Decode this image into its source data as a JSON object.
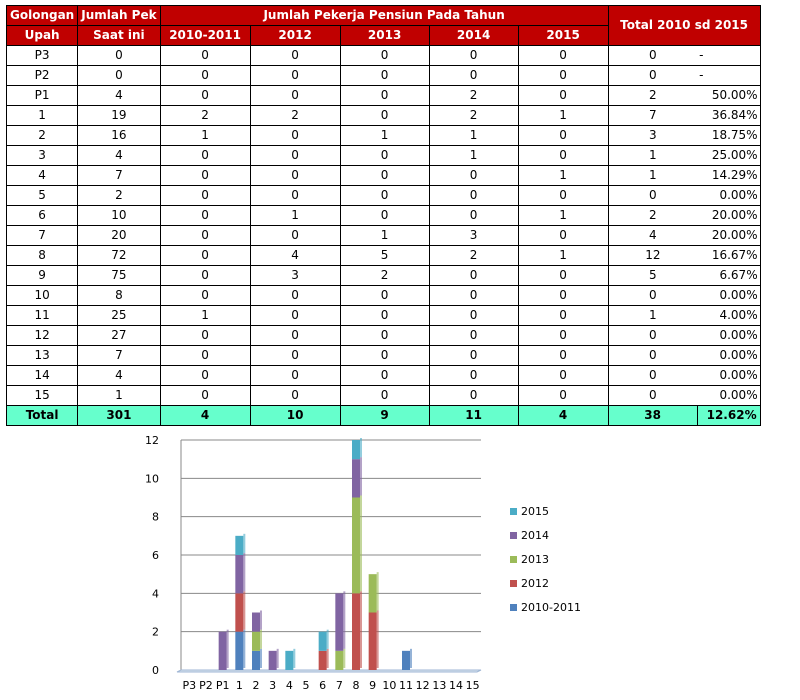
{
  "table": {
    "headers": {
      "gol_line1": "Golongan",
      "gol_line2": "Upah",
      "jumlah_line1": "Jumlah Pek",
      "jumlah_line2": "Saat ini",
      "pensiun_title": "Jumlah Pekerja Pensiun Pada Tahun",
      "years": [
        "2010-2011",
        "2012",
        "2013",
        "2014",
        "2015"
      ],
      "total_title": "Total 2010 sd 2015"
    },
    "rows": [
      {
        "gol": "P3",
        "jumlah": "0",
        "v": [
          "0",
          "0",
          "0",
          "0",
          "0"
        ],
        "total": "0",
        "pct": "-"
      },
      {
        "gol": "P2",
        "jumlah": "0",
        "v": [
          "0",
          "0",
          "0",
          "0",
          "0"
        ],
        "total": "0",
        "pct": "-"
      },
      {
        "gol": "P1",
        "jumlah": "4",
        "v": [
          "0",
          "0",
          "0",
          "2",
          "0"
        ],
        "total": "2",
        "pct": "50.00%"
      },
      {
        "gol": "1",
        "jumlah": "19",
        "v": [
          "2",
          "2",
          "0",
          "2",
          "1"
        ],
        "total": "7",
        "pct": "36.84%"
      },
      {
        "gol": "2",
        "jumlah": "16",
        "v": [
          "1",
          "0",
          "1",
          "1",
          "0"
        ],
        "total": "3",
        "pct": "18.75%"
      },
      {
        "gol": "3",
        "jumlah": "4",
        "v": [
          "0",
          "0",
          "0",
          "1",
          "0"
        ],
        "total": "1",
        "pct": "25.00%"
      },
      {
        "gol": "4",
        "jumlah": "7",
        "v": [
          "0",
          "0",
          "0",
          "0",
          "1"
        ],
        "total": "1",
        "pct": "14.29%"
      },
      {
        "gol": "5",
        "jumlah": "2",
        "v": [
          "0",
          "0",
          "0",
          "0",
          "0"
        ],
        "total": "0",
        "pct": "0.00%"
      },
      {
        "gol": "6",
        "jumlah": "10",
        "v": [
          "0",
          "1",
          "0",
          "0",
          "1"
        ],
        "total": "2",
        "pct": "20.00%"
      },
      {
        "gol": "7",
        "jumlah": "20",
        "v": [
          "0",
          "0",
          "1",
          "3",
          "0"
        ],
        "total": "4",
        "pct": "20.00%"
      },
      {
        "gol": "8",
        "jumlah": "72",
        "v": [
          "0",
          "4",
          "5",
          "2",
          "1"
        ],
        "total": "12",
        "pct": "16.67%"
      },
      {
        "gol": "9",
        "jumlah": "75",
        "v": [
          "0",
          "3",
          "2",
          "0",
          "0"
        ],
        "total": "5",
        "pct": "6.67%"
      },
      {
        "gol": "10",
        "jumlah": "8",
        "v": [
          "0",
          "0",
          "0",
          "0",
          "0"
        ],
        "total": "0",
        "pct": "0.00%"
      },
      {
        "gol": "11",
        "jumlah": "25",
        "v": [
          "1",
          "0",
          "0",
          "0",
          "0"
        ],
        "total": "1",
        "pct": "4.00%"
      },
      {
        "gol": "12",
        "jumlah": "27",
        "v": [
          "0",
          "0",
          "0",
          "0",
          "0"
        ],
        "total": "0",
        "pct": "0.00%"
      },
      {
        "gol": "13",
        "jumlah": "7",
        "v": [
          "0",
          "0",
          "0",
          "0",
          "0"
        ],
        "total": "0",
        "pct": "0.00%"
      },
      {
        "gol": "14",
        "jumlah": "4",
        "v": [
          "0",
          "0",
          "0",
          "0",
          "0"
        ],
        "total": "0",
        "pct": "0.00%"
      },
      {
        "gol": "15",
        "jumlah": "1",
        "v": [
          "0",
          "0",
          "0",
          "0",
          "0"
        ],
        "total": "0",
        "pct": "0.00%"
      }
    ],
    "footer": {
      "label": "Total",
      "jumlah": "301",
      "v": [
        "4",
        "10",
        "9",
        "11",
        "4"
      ],
      "total": "38",
      "pct": "12.62%"
    },
    "colors": {
      "header_bg": "#c00000",
      "footer_bg": "#66ffcc"
    }
  },
  "chart_data": {
    "type": "bar",
    "stacked": true,
    "categories": [
      "P3",
      "P2",
      "P1",
      "1",
      "2",
      "3",
      "4",
      "5",
      "6",
      "7",
      "8",
      "9",
      "10",
      "11",
      "12",
      "13",
      "14",
      "15"
    ],
    "series": [
      {
        "name": "2010-2011",
        "color": "#4f81bd",
        "values": [
          0,
          0,
          0,
          2,
          1,
          0,
          0,
          0,
          0,
          0,
          0,
          0,
          0,
          1,
          0,
          0,
          0,
          0
        ]
      },
      {
        "name": "2012",
        "color": "#c0504d",
        "values": [
          0,
          0,
          0,
          2,
          0,
          0,
          0,
          0,
          1,
          0,
          4,
          3,
          0,
          0,
          0,
          0,
          0,
          0
        ]
      },
      {
        "name": "2013",
        "color": "#9bbb59",
        "values": [
          0,
          0,
          0,
          0,
          1,
          0,
          0,
          0,
          0,
          1,
          5,
          2,
          0,
          0,
          0,
          0,
          0,
          0
        ]
      },
      {
        "name": "2014",
        "color": "#8064a2",
        "values": [
          0,
          0,
          2,
          2,
          1,
          1,
          0,
          0,
          0,
          3,
          2,
          0,
          0,
          0,
          0,
          0,
          0,
          0
        ]
      },
      {
        "name": "2015",
        "color": "#4bacc6",
        "values": [
          0,
          0,
          0,
          1,
          0,
          0,
          1,
          0,
          1,
          0,
          1,
          0,
          0,
          0,
          0,
          0,
          0,
          0
        ]
      }
    ],
    "ylim": [
      0,
      12
    ],
    "yticks": [
      0,
      2,
      4,
      6,
      8,
      10,
      12
    ],
    "grid": true,
    "legend": "right",
    "legend_order": [
      "2015",
      "2014",
      "2013",
      "2012",
      "2010-2011"
    ]
  }
}
